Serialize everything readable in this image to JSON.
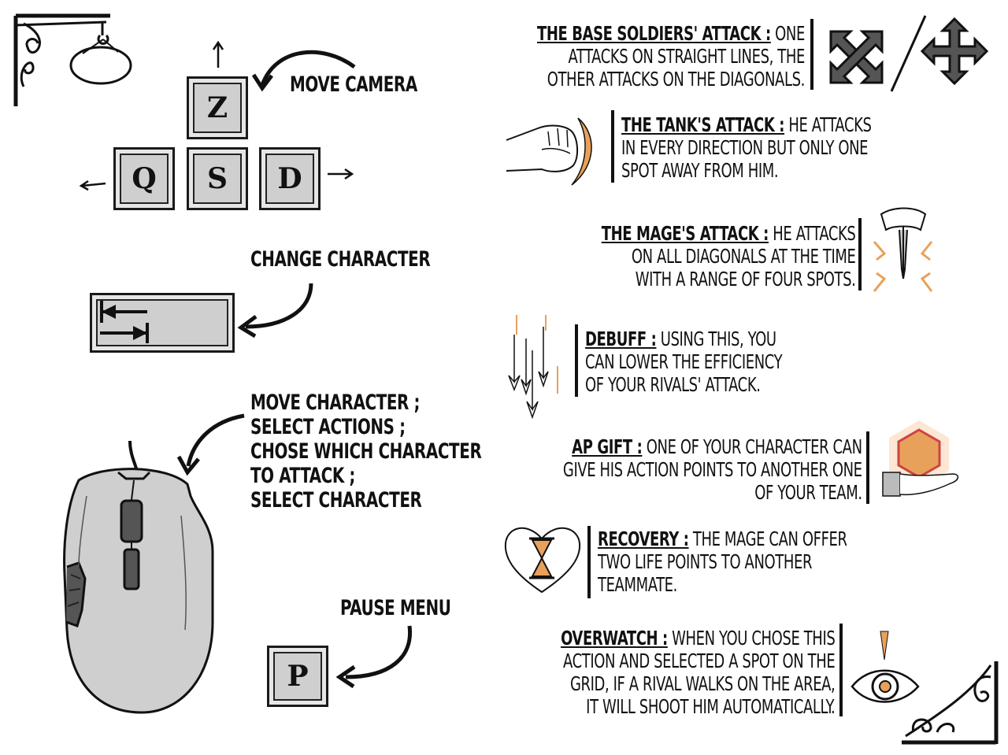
{
  "keys": {
    "z": "Z",
    "q": "Q",
    "s": "S",
    "d": "D",
    "p": "P"
  },
  "labels": {
    "move_camera": "Move camera",
    "change_character": "Change character",
    "mouse_lines": [
      "Move character ;",
      "Select actions ;",
      "Chose which character",
      "to attack ;",
      "Select character"
    ],
    "pause_menu": "Pause menu"
  },
  "abilities": {
    "base": {
      "title": "The base soldiers' attack :",
      "lines": [
        " one",
        "attacks on straight lines, the",
        "other attacks on the diagonals."
      ]
    },
    "tank": {
      "title": "The tank's attack :",
      "lines": [
        " he attacks",
        "in every direction but only one",
        "spot away from him."
      ]
    },
    "mage": {
      "title": "The mage's attack :",
      "lines": [
        " he attacks",
        "on all diagonals at the time",
        "with a range of four spots."
      ]
    },
    "debuff": {
      "title": "Debuff :",
      "lines": [
        " using this, you",
        "can lower the efficiency",
        "of your rivals' attack."
      ]
    },
    "apgift": {
      "title": "Ap gift :",
      "lines": [
        " one of your character can",
        "give his action points to another one",
        "of your team."
      ]
    },
    "recovery": {
      "title": "Recovery :",
      "lines": [
        " the mage can offer",
        "two life points to another",
        "teammate."
      ]
    },
    "overwatch": {
      "title": "Overwatch :",
      "lines": [
        " when you chose this",
        "action and selected a spot on the",
        "grid, if a rival walks on the area,",
        "it will shoot him automatically."
      ]
    }
  },
  "icons": [
    "diagonal-arrows-icon",
    "cross-arrows-icon",
    "fist-icon",
    "dagger-icon",
    "falling-daggers-icon",
    "hexagon-hand-icon",
    "heart-hourglass-icon",
    "eye-icon",
    "keyboard-tab-icon",
    "mouse-icon"
  ],
  "colors": {
    "accent": "#e8a15a",
    "ink": "#111111",
    "key": "#cfcfcf"
  }
}
